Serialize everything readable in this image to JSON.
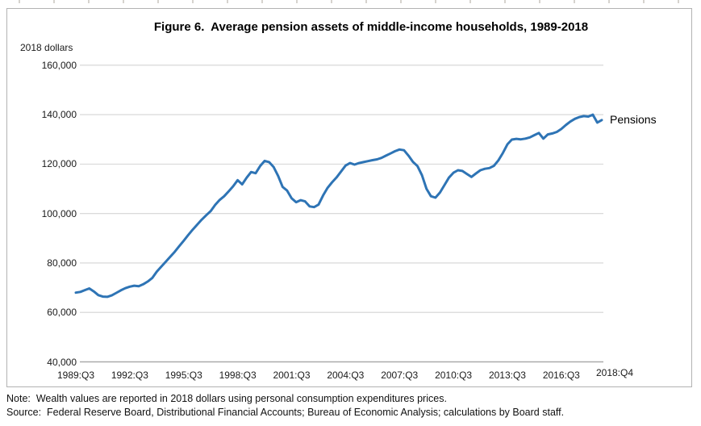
{
  "figure": {
    "title": "Figure 6.  Average pension assets of middle-income households, 1989-2018",
    "note": "Note:  Wealth values are reported in 2018 dollars using personal consumption expenditures prices.",
    "source": "Source:  Federal Reserve Board, Distributional Financial Accounts; Bureau of Economic Analysis; calculations by Board staff."
  },
  "chart": {
    "y_axis_title": "2018 dollars",
    "series_label": "Pensions"
  },
  "chart_data": {
    "type": "line",
    "title": "Figure 6.  Average pension assets of middle-income households, 1989-2018",
    "xlabel": "",
    "ylabel": "2018 dollars",
    "ylim": [
      40000,
      160000
    ],
    "grid": "horizontal",
    "legend_position": "right-of-line-end",
    "frequency": "quarterly",
    "x_start": "1989:Q3",
    "x_end": "2018:Q4",
    "y_ticks": [
      {
        "value": 40000,
        "label": "40,000"
      },
      {
        "value": 60000,
        "label": "60,000"
      },
      {
        "value": 80000,
        "label": "80,000"
      },
      {
        "value": 100000,
        "label": "100,000"
      },
      {
        "value": 120000,
        "label": "120,000"
      },
      {
        "value": 140000,
        "label": "140,000"
      },
      {
        "value": 160000,
        "label": "160,000"
      }
    ],
    "x_ticks": [
      {
        "quarter_index": 0,
        "label": "1989:Q3"
      },
      {
        "quarter_index": 12,
        "label": "1992:Q3"
      },
      {
        "quarter_index": 24,
        "label": "1995:Q3"
      },
      {
        "quarter_index": 36,
        "label": "1998:Q3"
      },
      {
        "quarter_index": 48,
        "label": "2001:Q3"
      },
      {
        "quarter_index": 60,
        "label": "2004:Q3"
      },
      {
        "quarter_index": 72,
        "label": "2007:Q3"
      },
      {
        "quarter_index": 84,
        "label": "2010:Q3"
      },
      {
        "quarter_index": 96,
        "label": "2013:Q3"
      },
      {
        "quarter_index": 108,
        "label": "2016:Q3"
      },
      {
        "quarter_index": 117,
        "label": "2018:Q4"
      }
    ],
    "series": [
      {
        "name": "Pensions",
        "color": "#2e74b5",
        "values": [
          68000,
          68300,
          69000,
          69700,
          68500,
          67000,
          66400,
          66300,
          66900,
          67900,
          68900,
          69800,
          70400,
          70800,
          70600,
          71400,
          72500,
          73900,
          76500,
          78500,
          80500,
          82500,
          84500,
          86800,
          89000,
          91300,
          93500,
          95500,
          97500,
          99300,
          101000,
          103500,
          105500,
          107000,
          109000,
          111000,
          113500,
          111800,
          114500,
          116800,
          116300,
          119200,
          121300,
          120800,
          118800,
          115200,
          110800,
          109300,
          106200,
          104600,
          105400,
          104900,
          102900,
          102600,
          103600,
          107300,
          110400,
          112600,
          114600,
          117000,
          119400,
          120400,
          119800,
          120400,
          120800,
          121200,
          121600,
          121900,
          122500,
          123400,
          124300,
          125200,
          125900,
          125600,
          123400,
          120900,
          119200,
          115500,
          110000,
          107000,
          106400,
          108500,
          111500,
          114500,
          116500,
          117500,
          117200,
          116000,
          114800,
          116200,
          117500,
          118100,
          118400,
          119300,
          121500,
          124500,
          128000,
          129900,
          130200,
          130000,
          130300,
          130800,
          131700,
          132600,
          130300,
          132000,
          132400,
          133000,
          134200,
          135800,
          137200,
          138300,
          139000,
          139400,
          139200,
          140000,
          136800,
          137800
        ]
      }
    ]
  }
}
